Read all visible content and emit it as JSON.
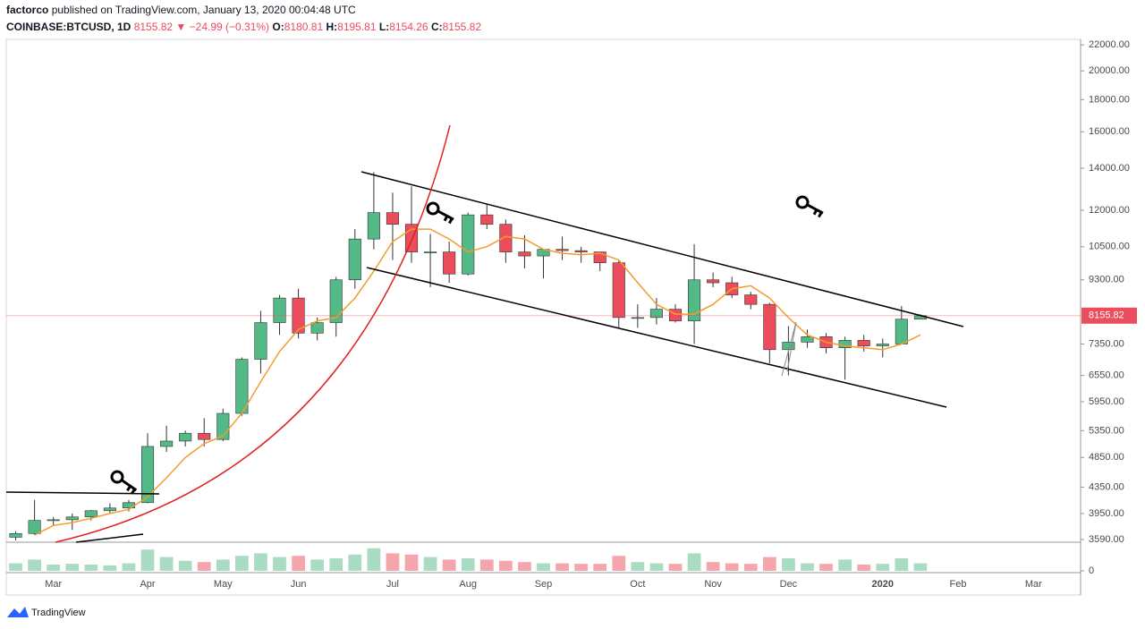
{
  "header": {
    "author": "factorco",
    "published": "published on TradingView.com, January 13, 2020 00:04:48 UTC",
    "symbol": "COINBASE:BTCUSD, 1D",
    "arrow": "▼",
    "change": "−24.99 (−0.31%)",
    "o_label": "O:",
    "h_label": "H:",
    "l_label": "L:",
    "c_label": "C:",
    "brand": "TradingView"
  },
  "chart_data": {
    "type": "candlestick",
    "log_scale": true,
    "grid": false,
    "day": {
      "open": 8180.81,
      "high": 8195.81,
      "low": 8154.26,
      "close": 8155.82
    },
    "up_color": "#53b987",
    "down_color": "#eb4d5c",
    "ma_color": "#f39c2c",
    "categories": [
      null,
      null,
      "Mar",
      null,
      null,
      null,
      null,
      "Apr",
      null,
      null,
      null,
      "May",
      null,
      null,
      null,
      "Jun",
      null,
      null,
      null,
      null,
      "Jul",
      null,
      null,
      null,
      "Aug",
      null,
      null,
      null,
      "Sep",
      null,
      null,
      null,
      null,
      "Oct",
      null,
      null,
      null,
      "Nov",
      null,
      null,
      null,
      "Dec",
      null,
      null,
      null,
      null,
      "2020",
      null,
      null,
      null,
      "Feb",
      null,
      null,
      null,
      "Mar",
      null,
      null
    ],
    "open": [
      3620,
      3670,
      3850,
      3860,
      3900,
      3990,
      4030,
      4110,
      5050,
      5150,
      5300,
      5180,
      5700,
      6950,
      7950,
      8700,
      7650,
      7950,
      9300,
      10800,
      11900,
      11400,
      10300,
      10300,
      9500,
      11800,
      11400,
      10300,
      10150,
      10400,
      10350,
      10300,
      9900,
      8100,
      8100,
      8350,
      8000,
      9300,
      9200,
      8800,
      8500,
      7200,
      7400,
      7550,
      7250,
      7450,
      7300,
      7350,
      8050,
      null,
      null,
      null,
      null,
      null,
      null,
      null,
      null
    ],
    "high": [
      3700,
      4150,
      3900,
      3950,
      4000,
      4100,
      4150,
      5300,
      5450,
      5350,
      5600,
      5800,
      7000,
      8300,
      8800,
      9000,
      8100,
      9400,
      11200,
      13800,
      12800,
      13100,
      11000,
      10700,
      11900,
      12300,
      11600,
      10950,
      10400,
      10900,
      10500,
      10300,
      10000,
      8500,
      8700,
      8500,
      10600,
      9550,
      9400,
      8900,
      8550,
      7850,
      7750,
      7650,
      7550,
      7600,
      7500,
      8450,
      8200,
      null,
      null,
      null,
      null,
      null,
      null,
      null,
      null
    ],
    "low": [
      3580,
      3650,
      3780,
      3720,
      3850,
      3950,
      3980,
      4100,
      4950,
      5050,
      5050,
      5150,
      5650,
      6600,
      7600,
      7500,
      7450,
      7550,
      9000,
      10400,
      10000,
      9900,
      9050,
      9200,
      9450,
      11200,
      9900,
      9700,
      9350,
      10000,
      9900,
      9600,
      7800,
      7800,
      7900,
      7950,
      7350,
      9050,
      8700,
      8350,
      6850,
      6550,
      7250,
      7100,
      6450,
      7150,
      7000,
      7350,
      8050,
      null,
      null,
      null,
      null,
      null,
      null,
      null,
      null
    ],
    "close": [
      3670,
      3850,
      3860,
      3900,
      3990,
      4030,
      4110,
      5050,
      5150,
      5300,
      5180,
      5700,
      6950,
      7950,
      8700,
      7650,
      7950,
      9300,
      10800,
      11900,
      11400,
      10300,
      10300,
      9500,
      11800,
      11400,
      10300,
      10150,
      10400,
      10350,
      10300,
      9900,
      8100,
      8100,
      8350,
      8000,
      9300,
      9200,
      8800,
      8500,
      7200,
      7400,
      7550,
      7250,
      7450,
      7300,
      7350,
      8050,
      8155.82,
      null,
      null,
      null,
      null,
      null,
      null,
      null,
      null
    ],
    "ma": [
      null,
      3650,
      3780,
      3820,
      3880,
      3950,
      4010,
      4200,
      4500,
      4850,
      5100,
      5250,
      5700,
      6400,
      7150,
      7750,
      8000,
      8100,
      8700,
      9600,
      10700,
      11200,
      11200,
      10800,
      10300,
      10500,
      10900,
      10800,
      10400,
      10250,
      10200,
      10250,
      10000,
      9200,
      8500,
      8200,
      8200,
      8500,
      9000,
      9100,
      8700,
      8100,
      7600,
      7400,
      7300,
      7250,
      7200,
      7350,
      7600,
      null,
      null,
      null,
      null,
      null,
      null,
      null,
      null
    ],
    "volume": [
      30,
      45,
      25,
      28,
      25,
      22,
      30,
      85,
      55,
      40,
      35,
      45,
      60,
      70,
      55,
      60,
      45,
      50,
      65,
      90,
      70,
      65,
      55,
      45,
      50,
      45,
      40,
      35,
      30,
      30,
      28,
      28,
      60,
      35,
      30,
      28,
      70,
      35,
      30,
      28,
      55,
      50,
      30,
      28,
      45,
      25,
      28,
      50,
      30,
      null,
      null,
      null,
      null,
      null,
      null,
      null,
      null
    ],
    "vol_ylim": [
      0,
      100
    ],
    "vol_yticks": [
      0
    ],
    "ylim": [
      3555,
      22450
    ],
    "yticks": [
      {
        "value": 3590,
        "label": "3590.00"
      },
      {
        "value": 3950,
        "label": "3950.00"
      },
      {
        "value": 4350,
        "label": "4350.00"
      },
      {
        "value": 4850,
        "label": "4850.00"
      },
      {
        "value": 5350,
        "label": "5350.00"
      },
      {
        "value": 5950,
        "label": "5950.00"
      },
      {
        "value": 6550,
        "label": "6550.00"
      },
      {
        "value": 7350,
        "label": "7350.00"
      },
      {
        "value": 9300,
        "label": "9300.00"
      },
      {
        "value": 10500,
        "label": "10500.00"
      },
      {
        "value": 12000,
        "label": "12000.00"
      },
      {
        "value": 14000,
        "label": "14000.00"
      },
      {
        "value": 16000,
        "label": "16000.00"
      },
      {
        "value": 18000,
        "label": "18000.00"
      },
      {
        "value": 20000,
        "label": "20000.00"
      },
      {
        "value": 22000,
        "label": "22000.00"
      }
    ]
  }
}
